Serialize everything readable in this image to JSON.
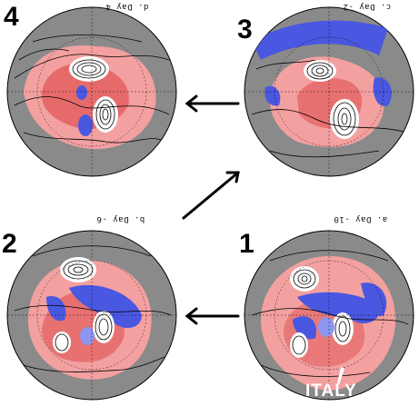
{
  "panels": [
    {
      "id": "p4",
      "number": "4",
      "header": "d. Day  4"
    },
    {
      "id": "p3",
      "number": "3",
      "header": "c. Day  -2"
    },
    {
      "id": "p2",
      "number": "2",
      "header": "b. Day  -6"
    },
    {
      "id": "p1",
      "number": "1",
      "header": "a. Day  -10"
    }
  ],
  "annotation": {
    "label": "ITALY"
  },
  "colors": {
    "background": "#8a8a8a",
    "positive_anomaly": "#f3a0a0",
    "positive_anomaly_strong": "#e05252",
    "negative_anomaly": "#4a57e0",
    "negative_anomaly_light": "#8d96ee",
    "contour": "#000000"
  }
}
